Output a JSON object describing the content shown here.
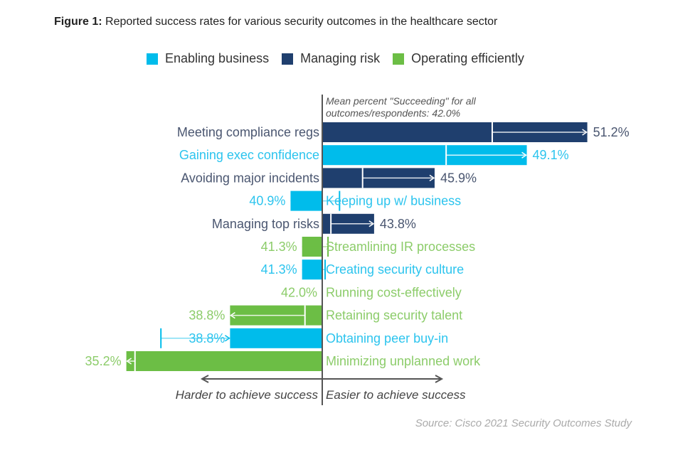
{
  "title_prefix": "Figure 1:",
  "title_text": "Reported success rates for various security outcomes in the healthcare sector",
  "source": "Source: Cisco 2021 Security Outcomes Study",
  "chart_data": {
    "type": "bar",
    "orientation": "horizontal",
    "title": "Reported success rates for various security outcomes in the healthcare sector",
    "baseline": 42.0,
    "baseline_note_line1": "Mean percent \"Succeeding\" for all",
    "baseline_note_line2": "outcomes/respondents: 42.0%",
    "axis_left_label": "Harder to achieve success",
    "axis_right_label": "Easier to achieve success",
    "legend": [
      {
        "name": "Enabling business",
        "color": "#00bceb"
      },
      {
        "name": "Managing risk",
        "color": "#1f3f6e"
      },
      {
        "name": "Operating efficiently",
        "color": "#6cbe45"
      }
    ],
    "label_colors": {
      "Enabling business": "#2cc4ee",
      "Managing risk": "#4a5670",
      "Operating efficiently": "#8ccc6a"
    },
    "categories": [
      "Meeting compliance regs",
      "Gaining exec confidence",
      "Avoiding major incidents",
      "Keeping up w/ business",
      "Managing top risks",
      "Streamlining IR processes",
      "Creating security culture",
      "Running cost-effectively",
      "Retaining security talent",
      "Obtaining peer buy-in",
      "Minimizing unplanned work"
    ],
    "groups": [
      "Managing risk",
      "Enabling business",
      "Managing risk",
      "Enabling business",
      "Managing risk",
      "Operating efficiently",
      "Enabling business",
      "Operating efficiently",
      "Operating efficiently",
      "Enabling business",
      "Operating efficiently"
    ],
    "values": [
      51.2,
      49.1,
      45.9,
      40.9,
      43.8,
      41.3,
      41.3,
      42.0,
      38.8,
      38.8,
      35.2
    ],
    "value_labels": [
      "51.2%",
      "49.1%",
      "45.9%",
      "40.9%",
      "43.8%",
      "41.3%",
      "41.3%",
      "42.0%",
      "38.8%",
      "38.8%",
      "35.2%"
    ],
    "comparison_values": [
      47.9,
      46.3,
      43.4,
      42.6,
      42.3,
      42.2,
      42.1,
      42.0,
      41.4,
      36.4,
      35.5
    ],
    "xlim": [
      35.0,
      52.0
    ]
  }
}
